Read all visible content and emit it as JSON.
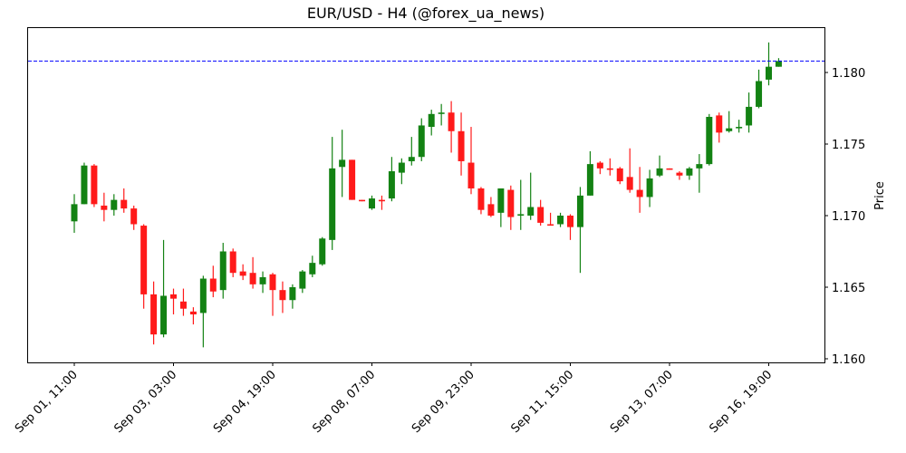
{
  "chart_data": {
    "type": "candlestick",
    "title": "EUR/USD - H4 (@forex_ua_news)",
    "xlabel": "",
    "ylabel": "Price",
    "ylim": [
      1.1595,
      1.1832
    ],
    "grid": false,
    "legend": null,
    "colors": {
      "up": "#138213",
      "down": "#ff1a1a",
      "ref_line": "#0000ff"
    },
    "reference_line": {
      "value": 1.1808,
      "style": "dashed",
      "color": "#0000ff"
    },
    "y_ticks": [
      "1.160",
      "1.165",
      "1.170",
      "1.175",
      "1.180"
    ],
    "y_tick_values": [
      1.16,
      1.165,
      1.17,
      1.175,
      1.18
    ],
    "x_ticks": [
      {
        "index": 0,
        "label": "Sep 01, 11:00"
      },
      {
        "index": 10,
        "label": "Sep 03, 03:00"
      },
      {
        "index": 20,
        "label": "Sep 04, 19:00"
      },
      {
        "index": 30,
        "label": "Sep 08, 07:00"
      },
      {
        "index": 40,
        "label": "Sep 09, 23:00"
      },
      {
        "index": 50,
        "label": "Sep 11, 15:00"
      },
      {
        "index": 60,
        "label": "Sep 13, 07:00"
      },
      {
        "index": 70,
        "label": "Sep 16, 19:00"
      }
    ],
    "candles": [
      [
        1.1696,
        1.1715,
        1.1688,
        1.1708
      ],
      [
        1.1708,
        1.1737,
        1.1708,
        1.1735
      ],
      [
        1.1735,
        1.1736,
        1.1706,
        1.1708
      ],
      [
        1.1707,
        1.1716,
        1.1696,
        1.1704
      ],
      [
        1.1704,
        1.1715,
        1.17,
        1.1711
      ],
      [
        1.1711,
        1.1719,
        1.1702,
        1.1705
      ],
      [
        1.1705,
        1.1707,
        1.169,
        1.1694
      ],
      [
        1.1693,
        1.1694,
        1.1635,
        1.1645
      ],
      [
        1.1645,
        1.1654,
        1.161,
        1.1617
      ],
      [
        1.1617,
        1.1683,
        1.1615,
        1.1644
      ],
      [
        1.1645,
        1.1649,
        1.1631,
        1.1642
      ],
      [
        1.164,
        1.1649,
        1.163,
        1.1635
      ],
      [
        1.1633,
        1.1636,
        1.1624,
        1.1631
      ],
      [
        1.1632,
        1.1658,
        1.1608,
        1.1656
      ],
      [
        1.1656,
        1.1665,
        1.1643,
        1.1647
      ],
      [
        1.1648,
        1.1681,
        1.1642,
        1.1675
      ],
      [
        1.1675,
        1.1677,
        1.1657,
        1.166
      ],
      [
        1.1661,
        1.1666,
        1.1655,
        1.1658
      ],
      [
        1.166,
        1.1671,
        1.1649,
        1.1652
      ],
      [
        1.1652,
        1.1661,
        1.1646,
        1.1657
      ],
      [
        1.1659,
        1.166,
        1.163,
        1.1648
      ],
      [
        1.1648,
        1.1654,
        1.1632,
        1.1641
      ],
      [
        1.1641,
        1.1652,
        1.1635,
        1.165
      ],
      [
        1.1649,
        1.1662,
        1.1646,
        1.1661
      ],
      [
        1.1659,
        1.1672,
        1.1657,
        1.1667
      ],
      [
        1.1666,
        1.1685,
        1.1665,
        1.1684
      ],
      [
        1.1683,
        1.1755,
        1.1676,
        1.1733
      ],
      [
        1.1734,
        1.176,
        1.1713,
        1.1739
      ],
      [
        1.1739,
        1.1739,
        1.1711,
        1.1711
      ],
      [
        1.1711,
        1.1711,
        1.171,
        1.171
      ],
      [
        1.1705,
        1.1714,
        1.1704,
        1.1712
      ],
      [
        1.1711,
        1.1714,
        1.1704,
        1.171
      ],
      [
        1.1712,
        1.1741,
        1.171,
        1.1731
      ],
      [
        1.173,
        1.174,
        1.1722,
        1.1737
      ],
      [
        1.1738,
        1.1755,
        1.1735,
        1.1741
      ],
      [
        1.1741,
        1.1768,
        1.1738,
        1.1763
      ],
      [
        1.1762,
        1.1774,
        1.1756,
        1.1771
      ],
      [
        1.1771,
        1.1778,
        1.1763,
        1.1772
      ],
      [
        1.1772,
        1.178,
        1.1744,
        1.1759
      ],
      [
        1.1759,
        1.1772,
        1.1728,
        1.1738
      ],
      [
        1.1737,
        1.1762,
        1.1715,
        1.1719
      ],
      [
        1.1719,
        1.172,
        1.1701,
        1.1704
      ],
      [
        1.1708,
        1.1713,
        1.1699,
        1.17
      ],
      [
        1.1702,
        1.1719,
        1.1692,
        1.1719
      ],
      [
        1.1718,
        1.1721,
        1.169,
        1.1699
      ],
      [
        1.17,
        1.1725,
        1.169,
        1.1701
      ],
      [
        1.17,
        1.173,
        1.1697,
        1.1706
      ],
      [
        1.1706,
        1.1711,
        1.1693,
        1.1695
      ],
      [
        1.1694,
        1.1702,
        1.1693,
        1.1693
      ],
      [
        1.1694,
        1.1702,
        1.1692,
        1.17
      ],
      [
        1.17,
        1.1701,
        1.1683,
        1.1692
      ],
      [
        1.1692,
        1.172,
        1.166,
        1.1714
      ],
      [
        1.1714,
        1.1745,
        1.1714,
        1.1736
      ],
      [
        1.1737,
        1.1738,
        1.1729,
        1.1733
      ],
      [
        1.1733,
        1.174,
        1.1728,
        1.1732
      ],
      [
        1.1733,
        1.1734,
        1.1722,
        1.1724
      ],
      [
        1.1727,
        1.1747,
        1.1716,
        1.1718
      ],
      [
        1.1718,
        1.1734,
        1.1702,
        1.1713
      ],
      [
        1.1713,
        1.1732,
        1.1706,
        1.1726
      ],
      [
        1.1728,
        1.1742,
        1.1727,
        1.1733
      ],
      [
        1.1733,
        1.1733,
        1.1732,
        1.1732
      ],
      [
        1.173,
        1.1731,
        1.1725,
        1.1728
      ],
      [
        1.1728,
        1.1734,
        1.1725,
        1.1733
      ],
      [
        1.1733,
        1.1743,
        1.1716,
        1.1736
      ],
      [
        1.1736,
        1.1771,
        1.1735,
        1.1769
      ],
      [
        1.177,
        1.1772,
        1.1751,
        1.1758
      ],
      [
        1.1759,
        1.1773,
        1.1758,
        1.1761
      ],
      [
        1.1761,
        1.1767,
        1.1758,
        1.1762
      ],
      [
        1.1763,
        1.1786,
        1.1758,
        1.1776
      ],
      [
        1.1776,
        1.1802,
        1.1775,
        1.1794
      ],
      [
        1.1795,
        1.1821,
        1.1791,
        1.1804
      ],
      [
        1.1804,
        1.181,
        1.1804,
        1.1808
      ]
    ],
    "candle_format": [
      "open",
      "high",
      "low",
      "close"
    ]
  }
}
